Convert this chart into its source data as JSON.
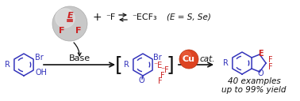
{
  "bg_color": "#ffffff",
  "blue": "#3333bb",
  "red": "#cc2222",
  "black": "#111111",
  "cu_orange": "#dd4422",
  "figsize": [
    3.78,
    1.28
  ],
  "dpi": 100,
  "text_E_S_Se": "(E = S, Se)",
  "text_40ex": "40 examples",
  "text_yield": "up to 99% yield",
  "text_base": "Base",
  "text_cu": "Cu",
  "text_cat": "cat.",
  "sphere_color": "#c8c8c8",
  "sphere_highlight": "#e0e0e0"
}
